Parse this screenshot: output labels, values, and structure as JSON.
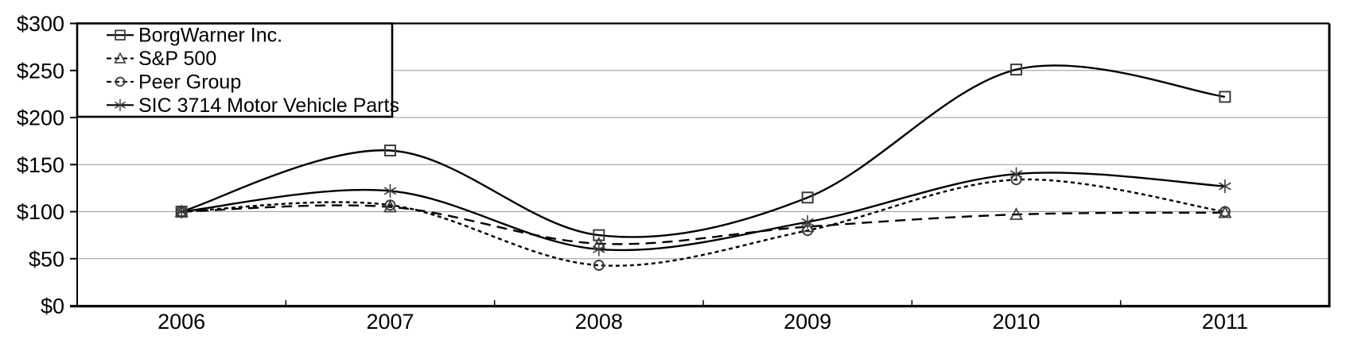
{
  "chart_data": {
    "type": "line",
    "title": "",
    "xlabel": "",
    "ylabel": "",
    "categories": [
      "2006",
      "2007",
      "2008",
      "2009",
      "2010",
      "2011"
    ],
    "series": [
      {
        "name": "BorgWarner Inc.",
        "values": [
          100,
          165,
          75,
          115,
          251,
          222
        ],
        "marker": "square",
        "line_style": "solid"
      },
      {
        "name": "S&P 500",
        "values": [
          100,
          105,
          66,
          84,
          97,
          99
        ],
        "marker": "triangle",
        "line_style": "long-dash"
      },
      {
        "name": "Peer Group",
        "values": [
          100,
          107,
          43,
          80,
          134,
          100
        ],
        "marker": "circle",
        "line_style": "short-dash"
      },
      {
        "name": "SIC 3714 Motor Vehicle Parts",
        "values": [
          100,
          122,
          60,
          89,
          140,
          127
        ],
        "marker": "asterisk",
        "line_style": "solid"
      }
    ],
    "ylim": [
      0,
      300
    ],
    "ytick_step": 50,
    "ytick_labels": [
      "$0",
      "$50",
      "$100",
      "$150",
      "$200",
      "$250",
      "$300"
    ],
    "grid": true,
    "smoothed_lines": true,
    "legend_position": "top-left",
    "colors": {
      "line": "#000000",
      "gridline": "#999999",
      "marker_stroke": "#3d3d3d",
      "background": "#ffffff"
    }
  }
}
